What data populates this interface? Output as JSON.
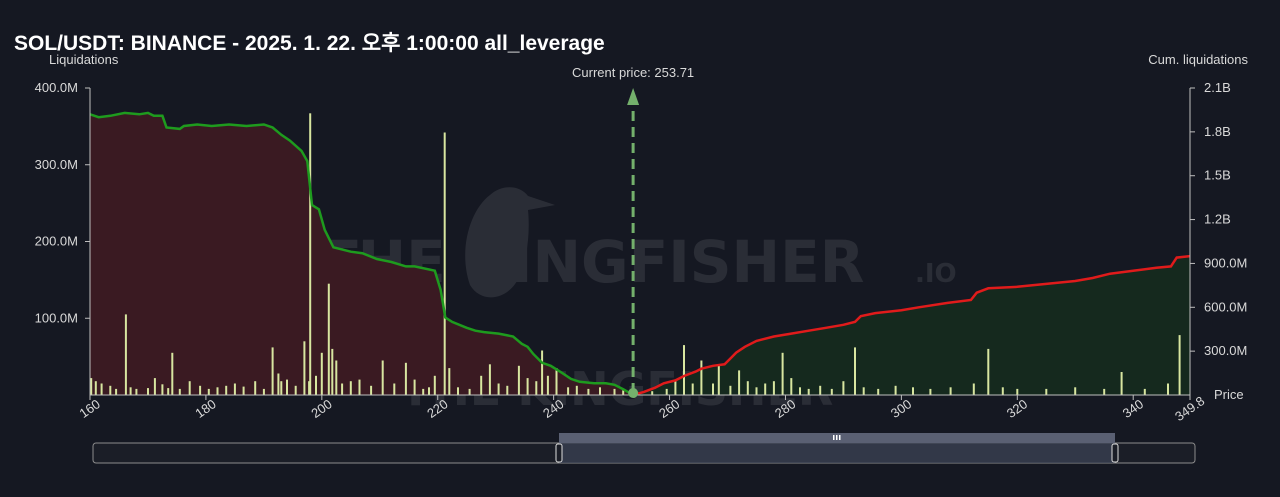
{
  "header": {
    "title": "SOL/USDT: BINANCE - 2025. 1. 22. 오후 1:00:00 all_leverage"
  },
  "watermark": {
    "text": "THE KINGFISHER",
    "suffix": ".IO"
  },
  "colors": {
    "background": "#151822",
    "long_line": "#1e9b1e",
    "short_line": "#e01b1b",
    "long_fill": "#3a1a22",
    "short_fill": "#15291e",
    "bar": "#d8e6a0",
    "current_price": "#74b06c"
  },
  "chart_data": {
    "type": "bar",
    "title": "SOL/USDT: BINANCE - 2025. 1. 22. 오후 1:00:00 all_leverage",
    "ylabel": "Liquidations",
    "y2label": "Cum. liquidations",
    "xlabel": "Price",
    "xlim": [
      160,
      349.8
    ],
    "ylim": [
      0,
      400000000
    ],
    "y2lim": [
      0,
      2100000000
    ],
    "x_ticks": [
      "160",
      "180",
      "200",
      "220",
      "240",
      "260",
      "280",
      "300",
      "320",
      "340",
      "349.8"
    ],
    "y_ticks": [
      "100.0M",
      "200.0M",
      "300.0M",
      "400.0M"
    ],
    "y2_ticks": [
      "300.0M",
      "600.0M",
      "900.0M",
      "1.2B",
      "1.5B",
      "1.8B",
      "2.1B"
    ],
    "current_price": {
      "label": "Current price: 253.71",
      "value": 253.71
    },
    "bars": [
      [
        160.2,
        22
      ],
      [
        161.0,
        18
      ],
      [
        162.0,
        15
      ],
      [
        163.5,
        12
      ],
      [
        164.5,
        8
      ],
      [
        166.2,
        105
      ],
      [
        167.0,
        10
      ],
      [
        168.0,
        8
      ],
      [
        170.0,
        9
      ],
      [
        171.2,
        22
      ],
      [
        172.5,
        14
      ],
      [
        173.5,
        9
      ],
      [
        174.2,
        55
      ],
      [
        175.5,
        8
      ],
      [
        177.2,
        18
      ],
      [
        179.0,
        12
      ],
      [
        180.5,
        8
      ],
      [
        182.0,
        10
      ],
      [
        183.5,
        12
      ],
      [
        185.0,
        15
      ],
      [
        186.5,
        11
      ],
      [
        188.5,
        18
      ],
      [
        190.0,
        8
      ],
      [
        191.5,
        62
      ],
      [
        192.5,
        28
      ],
      [
        193.0,
        18
      ],
      [
        194.0,
        20
      ],
      [
        195.5,
        12
      ],
      [
        197.0,
        70
      ],
      [
        197.8,
        18
      ],
      [
        198.0,
        367
      ],
      [
        199.0,
        25
      ],
      [
        200.0,
        55
      ],
      [
        201.2,
        145
      ],
      [
        201.8,
        60
      ],
      [
        202.5,
        45
      ],
      [
        203.5,
        15
      ],
      [
        205.0,
        18
      ],
      [
        206.5,
        20
      ],
      [
        208.5,
        12
      ],
      [
        210.5,
        45
      ],
      [
        212.5,
        15
      ],
      [
        214.5,
        42
      ],
      [
        216.0,
        20
      ],
      [
        217.5,
        8
      ],
      [
        218.5,
        10
      ],
      [
        219.5,
        25
      ],
      [
        221.2,
        342
      ],
      [
        222.0,
        35
      ],
      [
        223.5,
        10
      ],
      [
        225.5,
        8
      ],
      [
        227.5,
        25
      ],
      [
        229.0,
        40
      ],
      [
        230.5,
        15
      ],
      [
        232.0,
        12
      ],
      [
        234.0,
        38
      ],
      [
        235.5,
        22
      ],
      [
        237.0,
        18
      ],
      [
        238.0,
        58
      ],
      [
        239.0,
        25
      ],
      [
        240.5,
        35
      ],
      [
        242.5,
        10
      ],
      [
        244.0,
        12
      ],
      [
        246.0,
        8
      ],
      [
        248.0,
        10
      ],
      [
        250.5,
        8
      ],
      [
        252.0,
        6
      ],
      [
        257.0,
        5
      ],
      [
        259.5,
        8
      ],
      [
        261.0,
        18
      ],
      [
        262.5,
        65
      ],
      [
        264.0,
        15
      ],
      [
        265.5,
        45
      ],
      [
        267.5,
        15
      ],
      [
        268.5,
        40
      ],
      [
        270.5,
        12
      ],
      [
        272.0,
        32
      ],
      [
        273.5,
        18
      ],
      [
        275.0,
        10
      ],
      [
        276.5,
        15
      ],
      [
        278.0,
        18
      ],
      [
        279.5,
        55
      ],
      [
        281.0,
        22
      ],
      [
        282.5,
        10
      ],
      [
        284.0,
        8
      ],
      [
        286.0,
        12
      ],
      [
        288.0,
        8
      ],
      [
        290.0,
        18
      ],
      [
        292.0,
        62
      ],
      [
        293.5,
        10
      ],
      [
        296.0,
        8
      ],
      [
        299.0,
        12
      ],
      [
        302.0,
        10
      ],
      [
        305.0,
        8
      ],
      [
        308.5,
        10
      ],
      [
        312.5,
        15
      ],
      [
        315.0,
        60
      ],
      [
        317.5,
        10
      ],
      [
        320.0,
        8
      ],
      [
        325.0,
        8
      ],
      [
        330.0,
        10
      ],
      [
        335.0,
        8
      ],
      [
        338.0,
        30
      ],
      [
        342.0,
        8
      ],
      [
        346.0,
        15
      ],
      [
        348.0,
        78
      ]
    ],
    "long_cumulative": [
      [
        160.0,
        1.92
      ],
      [
        161.5,
        1.9
      ],
      [
        163.5,
        1.91
      ],
      [
        166.0,
        1.93
      ],
      [
        168.5,
        1.92
      ],
      [
        170.0,
        1.93
      ],
      [
        171.0,
        1.91
      ],
      [
        172.5,
        1.91
      ],
      [
        173.2,
        1.83
      ],
      [
        175.5,
        1.82
      ],
      [
        176.2,
        1.84
      ],
      [
        178.5,
        1.85
      ],
      [
        181.0,
        1.84
      ],
      [
        184.0,
        1.85
      ],
      [
        187.0,
        1.84
      ],
      [
        190.0,
        1.85
      ],
      [
        191.5,
        1.83
      ],
      [
        193.0,
        1.78
      ],
      [
        194.5,
        1.74
      ],
      [
        196.5,
        1.67
      ],
      [
        197.5,
        1.6
      ],
      [
        198.3,
        1.3
      ],
      [
        199.5,
        1.27
      ],
      [
        200.5,
        1.13
      ],
      [
        202.0,
        1.01
      ],
      [
        205.0,
        0.98
      ],
      [
        207.0,
        0.97
      ],
      [
        209.5,
        0.93
      ],
      [
        212.0,
        0.91
      ],
      [
        214.5,
        0.88
      ],
      [
        216.0,
        0.88
      ],
      [
        219.5,
        0.85
      ],
      [
        220.5,
        0.72
      ],
      [
        221.3,
        0.53
      ],
      [
        222.5,
        0.5
      ],
      [
        225.0,
        0.46
      ],
      [
        226.5,
        0.44
      ],
      [
        228.0,
        0.43
      ],
      [
        230.5,
        0.42
      ],
      [
        233.0,
        0.4
      ],
      [
        234.5,
        0.35
      ],
      [
        235.5,
        0.33
      ],
      [
        236.5,
        0.28
      ],
      [
        238.0,
        0.22
      ],
      [
        239.5,
        0.2
      ],
      [
        241.5,
        0.15
      ],
      [
        243.0,
        0.11
      ],
      [
        244.5,
        0.09
      ],
      [
        247.0,
        0.08
      ],
      [
        249.0,
        0.08
      ],
      [
        250.5,
        0.07
      ],
      [
        252.0,
        0.04
      ],
      [
        253.71,
        0.0
      ]
    ],
    "short_cumulative": [
      [
        253.71,
        0.0
      ],
      [
        255.5,
        0.02
      ],
      [
        257.5,
        0.05
      ],
      [
        259.0,
        0.08
      ],
      [
        261.0,
        0.1
      ],
      [
        262.5,
        0.13
      ],
      [
        264.5,
        0.16
      ],
      [
        265.5,
        0.18
      ],
      [
        267.5,
        0.2
      ],
      [
        269.5,
        0.21
      ],
      [
        270.5,
        0.25
      ],
      [
        271.5,
        0.29
      ],
      [
        273.0,
        0.33
      ],
      [
        275.0,
        0.37
      ],
      [
        278.0,
        0.4
      ],
      [
        281.0,
        0.42
      ],
      [
        284.0,
        0.44
      ],
      [
        287.0,
        0.46
      ],
      [
        290.0,
        0.48
      ],
      [
        292.0,
        0.5
      ],
      [
        293.0,
        0.54
      ],
      [
        295.5,
        0.56
      ],
      [
        300.0,
        0.58
      ],
      [
        303.0,
        0.6
      ],
      [
        308.0,
        0.63
      ],
      [
        312.0,
        0.65
      ],
      [
        313.0,
        0.7
      ],
      [
        315.0,
        0.73
      ],
      [
        320.0,
        0.74
      ],
      [
        325.0,
        0.76
      ],
      [
        330.0,
        0.78
      ],
      [
        333.0,
        0.8
      ],
      [
        336.0,
        0.83
      ],
      [
        340.0,
        0.85
      ],
      [
        344.0,
        0.87
      ],
      [
        346.5,
        0.88
      ],
      [
        347.5,
        0.94
      ],
      [
        349.8,
        0.95
      ]
    ]
  }
}
